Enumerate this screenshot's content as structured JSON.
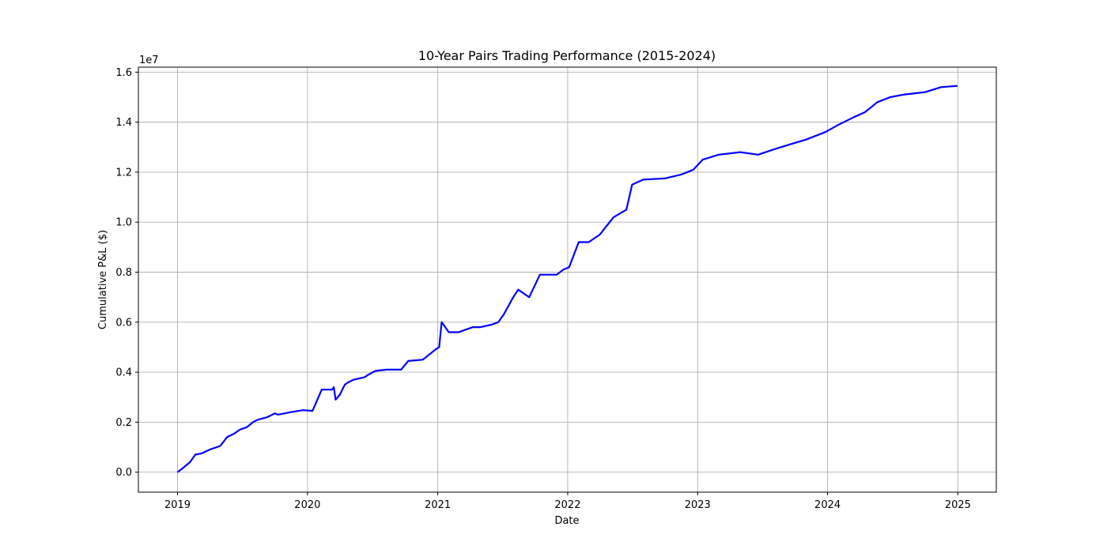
{
  "chart_data": {
    "type": "line",
    "title": "10-Year Pairs Trading Performance (2015-2024)",
    "xlabel": "Date",
    "ylabel": "Cumulative P&L ($)",
    "y_offset_label": "1e7",
    "y_scale_factor": 10000000,
    "xlim": [
      "2018-09-13",
      "2025-04-19"
    ],
    "ylim": [
      -0.08,
      1.62
    ],
    "grid": true,
    "x_ticks": [
      {
        "date": "2019-01-01",
        "label": "2019"
      },
      {
        "date": "2020-01-01",
        "label": "2020"
      },
      {
        "date": "2021-01-01",
        "label": "2021"
      },
      {
        "date": "2022-01-01",
        "label": "2022"
      },
      {
        "date": "2023-01-01",
        "label": "2023"
      },
      {
        "date": "2024-01-01",
        "label": "2024"
      },
      {
        "date": "2025-01-01",
        "label": "2025"
      }
    ],
    "y_ticks": [
      {
        "value": 0.0,
        "label": "0.0"
      },
      {
        "value": 0.2,
        "label": "0.2"
      },
      {
        "value": 0.4,
        "label": "0.4"
      },
      {
        "value": 0.6,
        "label": "0.6"
      },
      {
        "value": 0.8,
        "label": "0.8"
      },
      {
        "value": 1.0,
        "label": "1.0"
      },
      {
        "value": 1.2,
        "label": "1.2"
      },
      {
        "value": 1.4,
        "label": "1.4"
      },
      {
        "value": 1.6,
        "label": "1.6"
      }
    ],
    "series": [
      {
        "color": "#0000ff",
        "x": [
          "2019-01-01",
          "2019-01-15",
          "2019-02-05",
          "2019-02-20",
          "2019-03-10",
          "2019-04-01",
          "2019-05-01",
          "2019-05-20",
          "2019-06-10",
          "2019-06-25",
          "2019-07-15",
          "2019-08-01",
          "2019-08-15",
          "2019-09-10",
          "2019-10-01",
          "2019-10-10",
          "2019-11-15",
          "2019-12-20",
          "2020-01-15",
          "2020-02-10",
          "2020-03-10",
          "2020-03-15",
          "2020-03-20",
          "2020-04-01",
          "2020-04-15",
          "2020-04-25",
          "2020-05-10",
          "2020-06-10",
          "2020-06-20",
          "2020-07-10",
          "2020-08-10",
          "2020-09-20",
          "2020-10-10",
          "2020-11-20",
          "2020-12-25",
          "2021-01-05",
          "2021-01-12",
          "2021-02-01",
          "2021-03-01",
          "2021-03-20",
          "2021-04-10",
          "2021-05-01",
          "2021-06-01",
          "2021-06-20",
          "2021-07-05",
          "2021-08-01",
          "2021-08-15",
          "2021-09-15",
          "2021-09-25",
          "2021-10-15",
          "2021-11-01",
          "2021-12-01",
          "2021-12-20",
          "2022-01-05",
          "2022-02-01",
          "2022-03-01",
          "2022-04-01",
          "2022-05-10",
          "2022-06-15",
          "2022-07-01",
          "2022-08-01",
          "2022-10-01",
          "2022-11-15",
          "2022-12-20",
          "2023-01-15",
          "2023-03-01",
          "2023-05-01",
          "2023-06-20",
          "2023-08-01",
          "2023-09-15",
          "2023-11-01",
          "2023-12-25",
          "2024-02-01",
          "2024-03-15",
          "2024-04-15",
          "2024-05-20",
          "2024-06-25",
          "2024-08-01",
          "2024-10-01",
          "2024-11-15",
          "2024-12-31"
        ],
        "y": [
          0.0,
          0.015,
          0.04,
          0.07,
          0.075,
          0.09,
          0.105,
          0.14,
          0.155,
          0.17,
          0.18,
          0.2,
          0.21,
          0.22,
          0.235,
          0.23,
          0.24,
          0.248,
          0.245,
          0.33,
          0.33,
          0.34,
          0.29,
          0.31,
          0.35,
          0.36,
          0.37,
          0.38,
          0.39,
          0.405,
          0.41,
          0.41,
          0.445,
          0.45,
          0.49,
          0.5,
          0.6,
          0.56,
          0.56,
          0.57,
          0.58,
          0.58,
          0.59,
          0.6,
          0.63,
          0.7,
          0.73,
          0.7,
          0.73,
          0.79,
          0.79,
          0.79,
          0.81,
          0.82,
          0.92,
          0.92,
          0.95,
          1.02,
          1.05,
          1.15,
          1.17,
          1.175,
          1.19,
          1.21,
          1.25,
          1.27,
          1.28,
          1.27,
          1.29,
          1.31,
          1.33,
          1.36,
          1.39,
          1.42,
          1.44,
          1.48,
          1.5,
          1.51,
          1.52,
          1.54,
          1.545
        ]
      }
    ]
  }
}
